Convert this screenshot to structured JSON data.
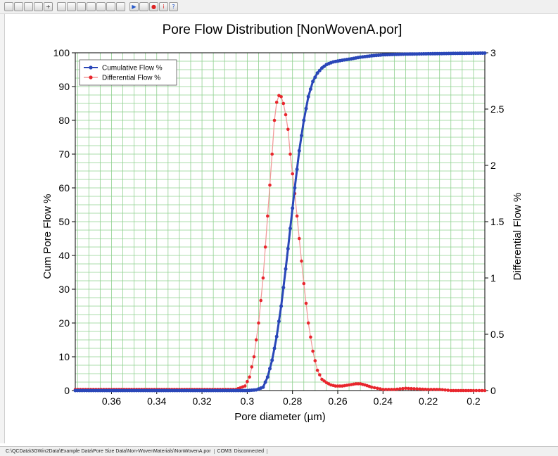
{
  "toolbar": {
    "buttons": [
      "open-icon",
      "save-icon",
      "save-as-icon",
      "print-icon",
      "zoom-icon",
      "copy-icon",
      "export-icon",
      "page-icon",
      "report-icon",
      "report-icon",
      "chart-icon",
      "graph-icon",
      "play-icon",
      "step-icon",
      "stop-icon",
      "info-icon",
      "help-icon"
    ]
  },
  "statusbar": {
    "path": "C:\\QCData\\3GWin2Data\\Example Data\\Pore Size Data\\Non-WovenMaterials\\NonWovenA.por",
    "port": "COM3: Disconnected"
  },
  "colors": {
    "cumulative": "#2a47b8",
    "differential": "#e8262d",
    "grid": "#8fd08f"
  },
  "chart_data": {
    "type": "line",
    "title": "Pore Flow Distribution [NonWovenA.por]",
    "xlabel": "Pore diameter (µm)",
    "ylabel": "Cum Pore Flow %",
    "y2label": "Differential Flow %",
    "xlim": [
      0.376,
      0.195
    ],
    "x_reversed": true,
    "ylim": [
      0,
      100
    ],
    "y2lim": [
      0,
      3
    ],
    "grid": true,
    "legend_position": "top-left",
    "x_ticks": [
      "0.36",
      "0.34",
      "0.32",
      "0.3",
      "0.28",
      "0.26",
      "0.24",
      "0.22",
      "0.2"
    ],
    "x_tick_values": [
      0.36,
      0.34,
      0.32,
      0.3,
      0.28,
      0.26,
      0.24,
      0.22,
      0.2
    ],
    "y_ticks": [
      "0",
      "10",
      "20",
      "30",
      "40",
      "50",
      "60",
      "70",
      "80",
      "90",
      "100"
    ],
    "y_tick_values": [
      0,
      10,
      20,
      30,
      40,
      50,
      60,
      70,
      80,
      90,
      100
    ],
    "y2_ticks": [
      "0",
      "0.5",
      "1",
      "1.5",
      "2",
      "2.5",
      "3"
    ],
    "y2_tick_values": [
      0,
      0.5,
      1,
      1.5,
      2,
      2.5,
      3
    ],
    "series": [
      {
        "name": "Cumulative Flow %",
        "axis": "left",
        "x": [
          0.376,
          0.35,
          0.33,
          0.31,
          0.3,
          0.296,
          0.293,
          0.291,
          0.289,
          0.287,
          0.285,
          0.283,
          0.281,
          0.279,
          0.277,
          0.275,
          0.273,
          0.271,
          0.269,
          0.267,
          0.265,
          0.262,
          0.258,
          0.254,
          0.25,
          0.245,
          0.24,
          0.23,
          0.22,
          0.21,
          0.195
        ],
        "values": [
          0,
          0,
          0,
          0,
          0,
          0.2,
          1,
          4,
          9,
          16,
          25,
          36,
          48,
          60,
          71,
          80,
          87,
          91.5,
          94,
          95.5,
          96.5,
          97.3,
          97.8,
          98.2,
          98.7,
          99.1,
          99.4,
          99.6,
          99.7,
          99.8,
          99.9
        ]
      },
      {
        "name": "Differential Flow %",
        "axis": "right",
        "x": [
          0.376,
          0.36,
          0.34,
          0.32,
          0.305,
          0.301,
          0.299,
          0.297,
          0.295,
          0.293,
          0.291,
          0.289,
          0.288,
          0.287,
          0.286,
          0.285,
          0.284,
          0.283,
          0.282,
          0.281,
          0.279,
          0.277,
          0.275,
          0.273,
          0.271,
          0.269,
          0.267,
          0.265,
          0.263,
          0.261,
          0.258,
          0.255,
          0.252,
          0.25,
          0.248,
          0.245,
          0.24,
          0.235,
          0.23,
          0.225,
          0.22,
          0.215,
          0.21,
          0.2,
          0.195
        ],
        "values": [
          0.01,
          0.01,
          0.01,
          0.01,
          0.01,
          0.04,
          0.12,
          0.3,
          0.6,
          1.0,
          1.55,
          2.1,
          2.4,
          2.56,
          2.62,
          2.61,
          2.55,
          2.45,
          2.32,
          2.1,
          1.75,
          1.35,
          0.95,
          0.6,
          0.35,
          0.18,
          0.1,
          0.07,
          0.05,
          0.04,
          0.04,
          0.05,
          0.06,
          0.06,
          0.05,
          0.03,
          0.01,
          0.01,
          0.02,
          0.015,
          0.01,
          0.01,
          0.0,
          0.0,
          0.0
        ]
      }
    ]
  }
}
